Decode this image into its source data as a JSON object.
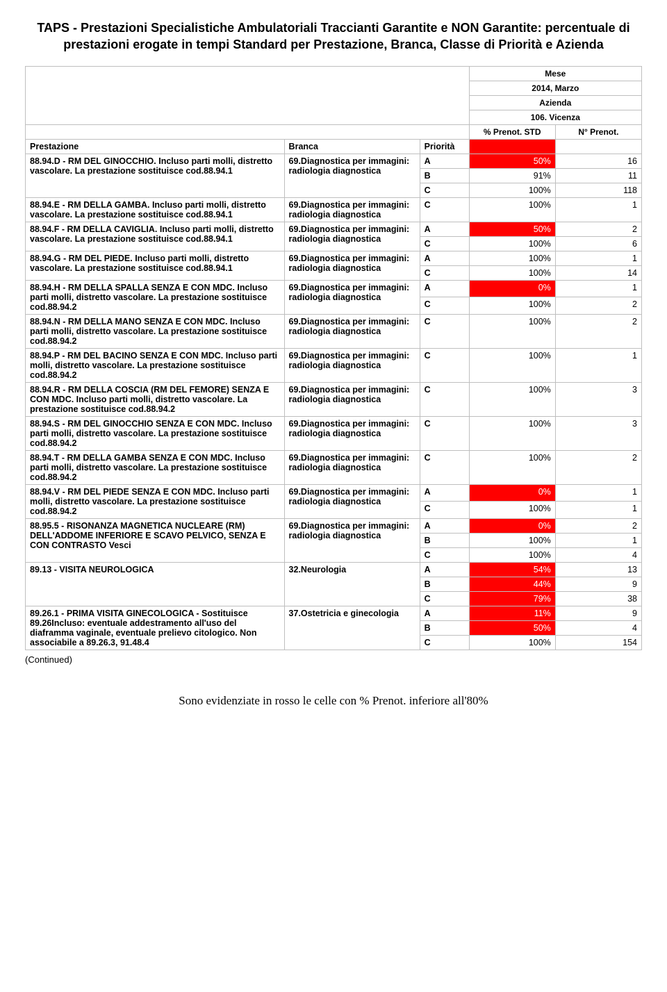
{
  "title": "TAPS - Prestazioni Specialistiche Ambulatoriali Traccianti Garantite e NON Garantite: percentuale di prestazioni erogate in tempi Standard per Prestazione, Branca, Classe di Priorità e Azienda",
  "meta": {
    "mese_label": "Mese",
    "mese_value": "2014, Marzo",
    "azienda_label": "Azienda",
    "azienda_value": "106. Vicenza",
    "pct_header": "% Prenot. STD",
    "n_header": "N° Prenot."
  },
  "columns": {
    "prestazione": "Prestazione",
    "branca": "Branca",
    "priorita": "Priorità"
  },
  "branca_diag": "69.Diagnostica per immagini: radiologia diagnostica",
  "groups": [
    {
      "prestazione": "88.94.D - RM DEL GINOCCHIO. Incluso parti molli, distretto vascolare. La prestazione sostituisce cod.88.94.1",
      "branca": "69.Diagnostica per immagini: radiologia diagnostica",
      "rows": [
        {
          "p": "A",
          "pct": "50%",
          "n": "16",
          "red": true
        },
        {
          "p": "B",
          "pct": "91%",
          "n": "11",
          "red": false
        },
        {
          "p": "C",
          "pct": "100%",
          "n": "118",
          "red": false
        }
      ]
    },
    {
      "prestazione": "88.94.E - RM DELLA GAMBA. Incluso parti molli, distretto vascolare. La prestazione sostituisce cod.88.94.1",
      "branca": "69.Diagnostica per immagini: radiologia diagnostica",
      "rows": [
        {
          "p": "C",
          "pct": "100%",
          "n": "1",
          "red": false
        }
      ]
    },
    {
      "prestazione": "88.94.F - RM DELLA CAVIGLIA. Incluso parti molli, distretto vascolare. La prestazione sostituisce cod.88.94.1",
      "branca": "69.Diagnostica per immagini: radiologia diagnostica",
      "rows": [
        {
          "p": "A",
          "pct": "50%",
          "n": "2",
          "red": true
        },
        {
          "p": "C",
          "pct": "100%",
          "n": "6",
          "red": false
        }
      ]
    },
    {
      "prestazione": "88.94.G - RM DEL PIEDE. Incluso parti molli, distretto vascolare. La prestazione sostituisce cod.88.94.1",
      "branca": "69.Diagnostica per immagini: radiologia diagnostica",
      "rows": [
        {
          "p": "A",
          "pct": "100%",
          "n": "1",
          "red": false
        },
        {
          "p": "C",
          "pct": "100%",
          "n": "14",
          "red": false
        }
      ]
    },
    {
      "prestazione": "88.94.H - RM DELLA SPALLA SENZA E CON MDC. Incluso parti molli, distretto vascolare. La prestazione sostituisce cod.88.94.2",
      "branca": "69.Diagnostica per immagini: radiologia diagnostica",
      "rows": [
        {
          "p": "A",
          "pct": "0%",
          "n": "1",
          "red": true
        },
        {
          "p": "C",
          "pct": "100%",
          "n": "2",
          "red": false
        }
      ]
    },
    {
      "prestazione": "88.94.N - RM DELLA MANO SENZA E CON MDC. Incluso parti molli, distretto vascolare. La prestazione sostituisce cod.88.94.2",
      "branca": "69.Diagnostica per immagini: radiologia diagnostica",
      "rows": [
        {
          "p": "C",
          "pct": "100%",
          "n": "2",
          "red": false
        }
      ]
    },
    {
      "prestazione": "88.94.P - RM DEL BACINO SENZA E CON MDC. Incluso parti molli, distretto vascolare. La prestazione sostituisce cod.88.94.2",
      "branca": "69.Diagnostica per immagini: radiologia diagnostica",
      "rows": [
        {
          "p": "C",
          "pct": "100%",
          "n": "1",
          "red": false
        }
      ]
    },
    {
      "prestazione": "88.94.R - RM DELLA COSCIA (RM DEL FEMORE) SENZA E CON MDC. Incluso parti molli, distretto vascolare. La prestazione sostituisce cod.88.94.2",
      "branca": "69.Diagnostica per immagini: radiologia diagnostica",
      "rows": [
        {
          "p": "C",
          "pct": "100%",
          "n": "3",
          "red": false
        }
      ]
    },
    {
      "prestazione": "88.94.S - RM DEL GINOCCHIO SENZA E CON MDC. Incluso parti molli, distretto vascolare. La prestazione sostituisce cod.88.94.2",
      "branca": "69.Diagnostica per immagini: radiologia diagnostica",
      "rows": [
        {
          "p": "C",
          "pct": "100%",
          "n": "3",
          "red": false
        }
      ]
    },
    {
      "prestazione": "88.94.T - RM DELLA GAMBA SENZA E CON MDC. Incluso parti molli, distretto vascolare. La prestazione sostituisce cod.88.94.2",
      "branca": "69.Diagnostica per immagini: radiologia diagnostica",
      "rows": [
        {
          "p": "C",
          "pct": "100%",
          "n": "2",
          "red": false
        }
      ]
    },
    {
      "prestazione": "88.94.V - RM DEL PIEDE SENZA E CON MDC. Incluso parti molli, distretto vascolare. La prestazione sostituisce cod.88.94.2",
      "branca": "69.Diagnostica per immagini: radiologia diagnostica",
      "rows": [
        {
          "p": "A",
          "pct": "0%",
          "n": "1",
          "red": true
        },
        {
          "p": "C",
          "pct": "100%",
          "n": "1",
          "red": false
        }
      ]
    },
    {
      "prestazione": "88.95.5 - RISONANZA MAGNETICA NUCLEARE (RM) DELL'ADDOME INFERIORE E SCAVO PELVICO, SENZA E CON CONTRASTO Vesci",
      "branca": "69.Diagnostica per immagini: radiologia diagnostica",
      "rows": [
        {
          "p": "A",
          "pct": "0%",
          "n": "2",
          "red": true
        },
        {
          "p": "B",
          "pct": "100%",
          "n": "1",
          "red": false
        },
        {
          "p": "C",
          "pct": "100%",
          "n": "4",
          "red": false
        }
      ]
    },
    {
      "prestazione": "89.13 - VISITA NEUROLOGICA",
      "branca": "32.Neurologia",
      "rows": [
        {
          "p": "A",
          "pct": "54%",
          "n": "13",
          "red": true
        },
        {
          "p": "B",
          "pct": "44%",
          "n": "9",
          "red": true
        },
        {
          "p": "C",
          "pct": "79%",
          "n": "38",
          "red": true
        }
      ]
    },
    {
      "prestazione": "89.26.1 - PRIMA VISITA GINECOLOGICA - Sostituisce 89.26Incluso: eventuale addestramento all'uso del diaframma vaginale, eventuale prelievo citologico. Non associabile a 89.26.3, 91.48.4",
      "branca": "37.Ostetricia e ginecologia",
      "rows": [
        {
          "p": "A",
          "pct": "11%",
          "n": "9",
          "red": true
        },
        {
          "p": "B",
          "pct": "50%",
          "n": "4",
          "red": true
        },
        {
          "p": "C",
          "pct": "100%",
          "n": "154",
          "red": false
        }
      ]
    }
  ],
  "continued": "(Continued)",
  "footer": "Sono evidenziate in rosso le celle con % Prenot. inferiore all'80%",
  "colors": {
    "red_bg": "#ff0000",
    "border": "#bfbfbf"
  }
}
